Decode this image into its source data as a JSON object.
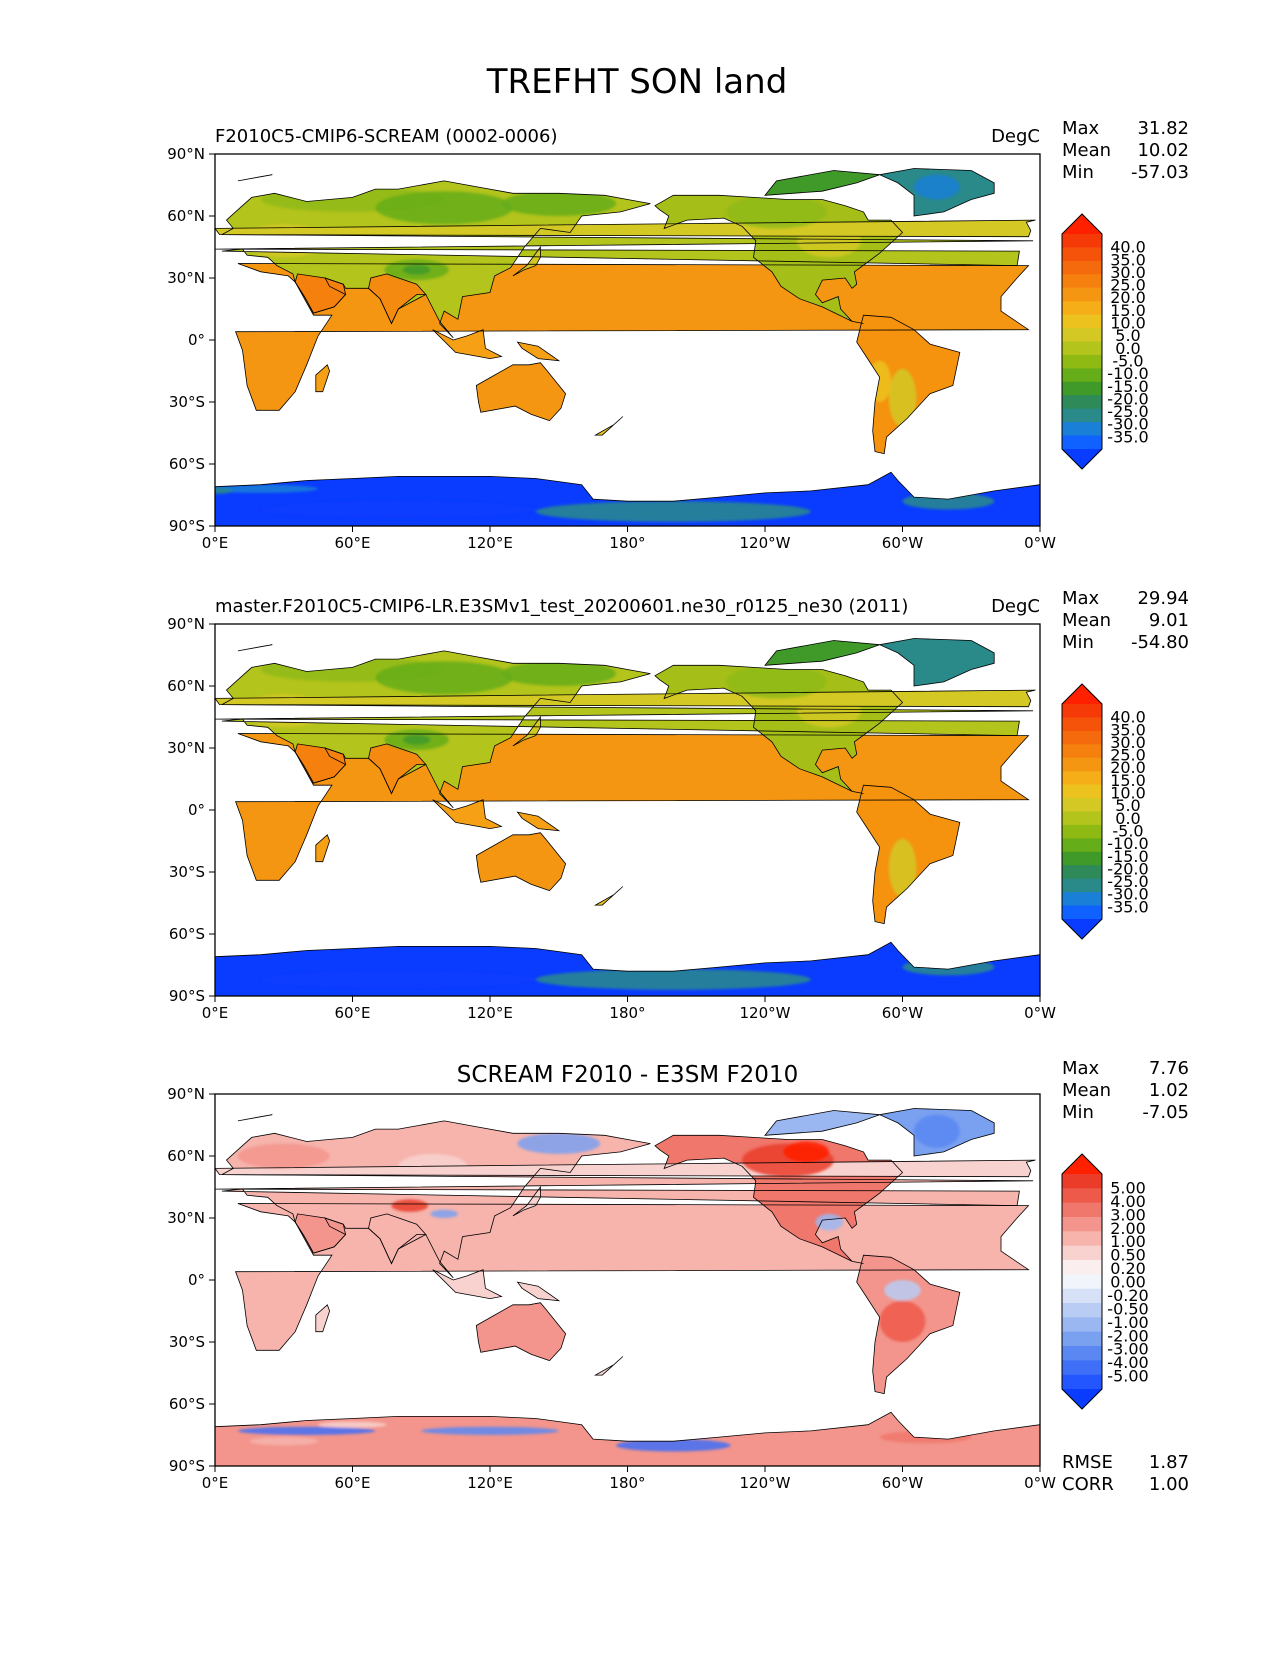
{
  "figure": {
    "title": "TREFHT SON land"
  },
  "colors": {
    "ocean": "#ffffff",
    "land_outline": "#000000",
    "abs_cmap": [
      "#0a3cff",
      "#0f62ff",
      "#1a7fd6",
      "#2a8a8a",
      "#2f8a5a",
      "#3f9a2a",
      "#66ad1a",
      "#8fba14",
      "#b3c41c",
      "#d4c824",
      "#ecc21f",
      "#f5ad18",
      "#f59612",
      "#f5800e",
      "#f56a0c",
      "#f5520a",
      "#f53a08",
      "#ff2000"
    ],
    "diff_cmap": [
      "#0a3cff",
      "#2456ff",
      "#3f6ff7",
      "#5a87f2",
      "#7aa0f0",
      "#9ab7f2",
      "#b8ccf4",
      "#d6e0f7",
      "#f2f4fb",
      "#fbeeee",
      "#f8d2cf",
      "#f6b4ad",
      "#f3958c",
      "#f0776b",
      "#ed5a4a",
      "#ea3c29",
      "#ff2000"
    ]
  },
  "panels": [
    {
      "left_title": "F2010C5-CMIP6-SCREAM (0002-0006)",
      "center_title": "",
      "units": "DegC",
      "stats": [
        {
          "label": "Max",
          "value": "31.82"
        },
        {
          "label": "Mean",
          "value": "10.02"
        },
        {
          "label": "Min",
          "value": "-57.03"
        }
      ],
      "colorbar_labels": [
        "40.0",
        "35.0",
        "30.0",
        "25.0",
        "20.0",
        "15.0",
        "10.0",
        "5.0",
        "0.0",
        "-5.0",
        "-10.0",
        "-15.0",
        "-20.0",
        "-25.0",
        "-30.0",
        "-35.0"
      ],
      "extra_stats": []
    },
    {
      "left_title": "master.F2010C5-CMIP6-LR.E3SMv1_test_20200601.ne30_r0125_ne30 (2011)",
      "center_title": "",
      "units": "DegC",
      "stats": [
        {
          "label": "Max",
          "value": "29.94"
        },
        {
          "label": "Mean",
          "value": "9.01"
        },
        {
          "label": "Min",
          "value": "-54.80"
        }
      ],
      "colorbar_labels": [
        "40.0",
        "35.0",
        "30.0",
        "25.0",
        "20.0",
        "15.0",
        "10.0",
        "5.0",
        "0.0",
        "-5.0",
        "-10.0",
        "-15.0",
        "-20.0",
        "-25.0",
        "-30.0",
        "-35.0"
      ],
      "extra_stats": []
    },
    {
      "left_title": "",
      "center_title": "SCREAM F2010 - E3SM F2010",
      "units": "",
      "stats": [
        {
          "label": "Max",
          "value": "7.76"
        },
        {
          "label": "Mean",
          "value": "1.02"
        },
        {
          "label": "Min",
          "value": "-7.05"
        }
      ],
      "colorbar_labels": [
        "5.00",
        "4.00",
        "3.00",
        "2.00",
        "1.00",
        "0.50",
        "0.20",
        "0.00",
        "-0.20",
        "-0.50",
        "-1.00",
        "-2.00",
        "-3.00",
        "-4.00",
        "-5.00"
      ],
      "extra_stats": [
        {
          "label": "RMSE",
          "value": "1.87"
        },
        {
          "label": "CORR",
          "value": "1.00"
        }
      ]
    }
  ],
  "axes": {
    "x_ticks": [
      "0°E",
      "60°E",
      "120°E",
      "180°",
      "120°W",
      "60°W",
      "0°W"
    ],
    "y_ticks": [
      "90°N",
      "60°N",
      "30°N",
      "0°",
      "30°S",
      "60°S",
      "90°S"
    ]
  }
}
